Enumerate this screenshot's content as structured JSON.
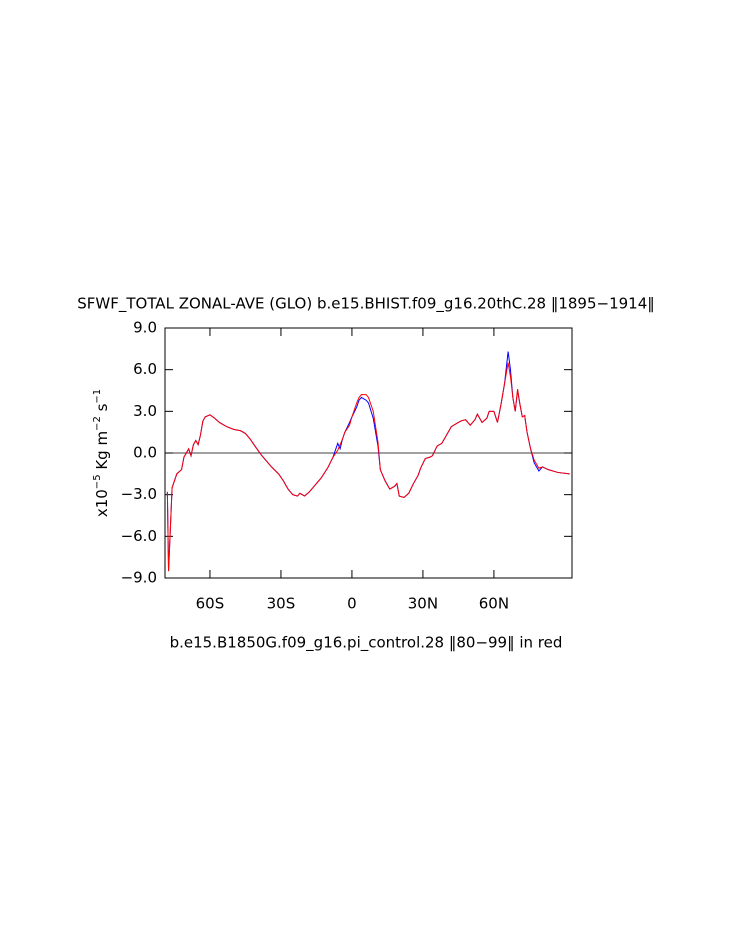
{
  "chart_data": {
    "type": "line",
    "title": "SFWF_TOTAL ZONAL-AVE (GLO) b.e15.BHIST.f09_g16.20thC.28 ‖1895−1914‖",
    "ylabel": [
      {
        "text": "x10"
      },
      {
        "text": "−5",
        "sup": true
      },
      {
        "text": " Kg m"
      },
      {
        "text": "−2",
        "sup": true
      },
      {
        "text": " s"
      },
      {
        "text": "−1",
        "sup": true
      }
    ],
    "xlabel": "b.e15.B1850G.f09_g16.pi_control.28 ‖80−99‖ in red",
    "xlim": [
      -79,
      93
    ],
    "xticks": [
      {
        "value": -60,
        "label": "60S"
      },
      {
        "value": -30,
        "label": "30S"
      },
      0,
      {
        "value": 30,
        "label": "30N"
      },
      {
        "value": 60,
        "label": "60N"
      }
    ],
    "ylim": [
      -9,
      9
    ],
    "yticks": [
      {
        "value": 9,
        "label": "9.0"
      },
      {
        "value": 6,
        "label": "6.0"
      },
      {
        "value": 3,
        "label": "3.0"
      },
      {
        "value": 0,
        "label": "0.0"
      },
      {
        "value": -3,
        "label": "−3.0"
      },
      {
        "value": -6,
        "label": "−6.0"
      },
      {
        "value": -9,
        "label": "−9.0"
      }
    ],
    "hline": 0,
    "x": [
      -78,
      -77.5,
      -76,
      -74,
      -72,
      -71,
      -69,
      -68,
      -67,
      -66,
      -65,
      -64,
      -63,
      -62,
      -60,
      -58,
      -56,
      -53,
      -50,
      -47,
      -45,
      -43,
      -41,
      -38,
      -36,
      -34,
      -31,
      -29,
      -27,
      -25,
      -23,
      -22,
      -20,
      -18,
      -16,
      -13,
      -10,
      -8,
      -6,
      -5,
      -4,
      -3,
      -1,
      0,
      2,
      3,
      4,
      6,
      7,
      9,
      11,
      12,
      14,
      16,
      18,
      19,
      20,
      22,
      24,
      26,
      28,
      29,
      31,
      33,
      34,
      36,
      38,
      40,
      42,
      44,
      46,
      48,
      50,
      52,
      53,
      55,
      57,
      58,
      60,
      61.5,
      63,
      64.5,
      66,
      67,
      68,
      69,
      70,
      71,
      72,
      73,
      74,
      75.5,
      77,
      79,
      80.5,
      83,
      87,
      92
    ],
    "series": [
      {
        "color": "#0000ff",
        "values": [
          -2.8,
          -8.5,
          -2.5,
          -1.5,
          -1.2,
          -0.3,
          0.3,
          -0.2,
          0.6,
          0.9,
          0.6,
          1.3,
          2.3,
          2.6,
          2.75,
          2.5,
          2.2,
          1.9,
          1.7,
          1.6,
          1.4,
          1.0,
          0.5,
          -0.2,
          -0.6,
          -1.0,
          -1.5,
          -2.0,
          -2.6,
          -3.0,
          -3.1,
          -2.9,
          -3.1,
          -2.8,
          -2.4,
          -1.8,
          -1.0,
          -0.3,
          0.7,
          0.3,
          1.0,
          1.5,
          2.2,
          2.6,
          3.3,
          3.8,
          4.0,
          3.8,
          3.6,
          2.5,
          0.5,
          -1.2,
          -2.0,
          -2.6,
          -2.4,
          -2.2,
          -3.1,
          -3.2,
          -2.9,
          -2.2,
          -1.6,
          -1.1,
          -0.4,
          -0.3,
          -0.2,
          0.5,
          0.7,
          1.3,
          1.9,
          2.1,
          2.3,
          2.4,
          2.0,
          2.4,
          2.8,
          2.2,
          2.5,
          3.0,
          3.0,
          2.2,
          3.5,
          5.0,
          7.3,
          6.0,
          4.0,
          3.0,
          4.5,
          3.5,
          2.6,
          2.7,
          1.5,
          0.3,
          -0.7,
          -1.3,
          -1.0,
          -1.2,
          -1.4,
          -1.5
        ]
      },
      {
        "color": "#ff0000",
        "values": [
          -2.8,
          -8.5,
          -2.5,
          -1.5,
          -1.2,
          -0.3,
          0.3,
          -0.2,
          0.6,
          0.9,
          0.6,
          1.3,
          2.3,
          2.6,
          2.75,
          2.5,
          2.2,
          1.9,
          1.7,
          1.6,
          1.4,
          1.0,
          0.5,
          -0.2,
          -0.6,
          -1.0,
          -1.5,
          -2.0,
          -2.6,
          -3.0,
          -3.1,
          -2.9,
          -3.1,
          -2.8,
          -2.4,
          -1.8,
          -1.0,
          -0.3,
          0.2,
          0.6,
          1.0,
          1.5,
          2.0,
          2.6,
          3.6,
          4.0,
          4.2,
          4.2,
          4.0,
          3.0,
          0.8,
          -1.2,
          -2.0,
          -2.6,
          -2.4,
          -2.2,
          -3.1,
          -3.2,
          -2.9,
          -2.2,
          -1.6,
          -1.1,
          -0.4,
          -0.3,
          -0.2,
          0.5,
          0.7,
          1.3,
          1.9,
          2.1,
          2.3,
          2.4,
          2.0,
          2.4,
          2.8,
          2.2,
          2.5,
          3.0,
          3.0,
          2.2,
          3.5,
          5.0,
          6.5,
          5.5,
          4.0,
          3.0,
          4.6,
          3.5,
          2.6,
          2.7,
          1.5,
          0.3,
          -0.5,
          -1.1,
          -1.0,
          -1.2,
          -1.4,
          -1.5
        ]
      }
    ]
  }
}
